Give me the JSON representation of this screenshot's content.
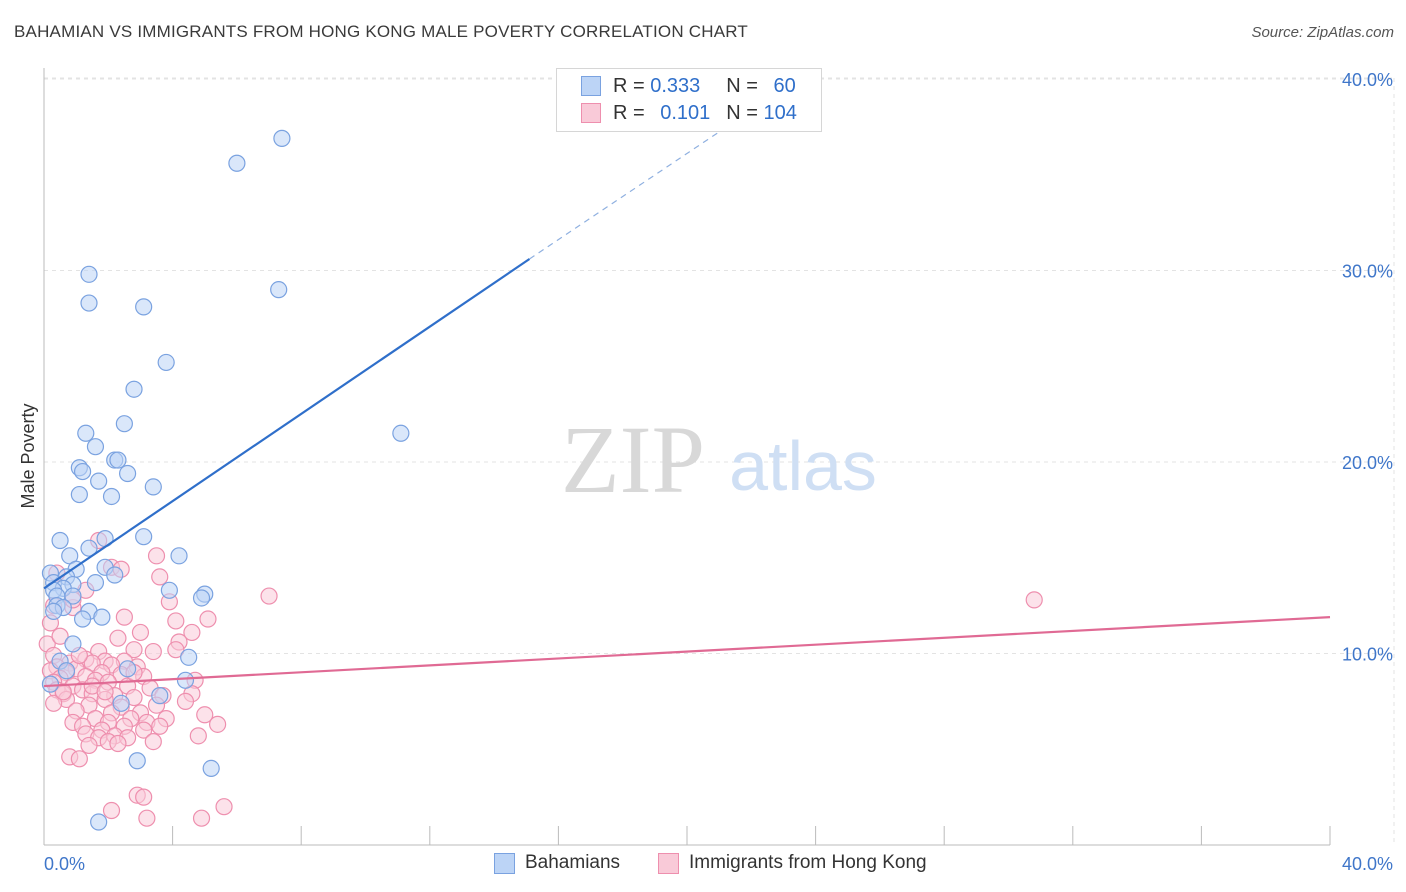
{
  "title": "BAHAMIAN VS IMMIGRANTS FROM HONG KONG MALE POVERTY CORRELATION CHART",
  "source": "Source: ZipAtlas.com",
  "watermark": {
    "zip": "ZIP",
    "atlas": "atlas"
  },
  "legend": {
    "r_label": "R =",
    "n_label": "N =",
    "series1": {
      "r": "0.333",
      "n": "60"
    },
    "series2": {
      "r": "0.101",
      "n": "104"
    }
  },
  "colors": {
    "blue_fill": "#bcd4f6",
    "blue_stroke": "#7aa2e0",
    "blue_line": "#2f6fca",
    "pink_fill": "#f9cad8",
    "pink_stroke": "#ee8fae",
    "pink_line": "#e06a94",
    "axis_text": "#3f76c9",
    "grid": "#e3e3e3"
  },
  "chart_data": {
    "type": "scatter",
    "title": "BAHAMIAN VS IMMIGRANTS FROM HONG KONG MALE POVERTY CORRELATION CHART",
    "xlabel": "",
    "ylabel": "Male Poverty",
    "xlim": [
      0,
      40
    ],
    "ylim": [
      0,
      40
    ],
    "x_ticks": [
      "0.0%",
      "40.0%"
    ],
    "y_ticks": [
      "10.0%",
      "20.0%",
      "30.0%",
      "40.0%"
    ],
    "y_tick_values": [
      10,
      20,
      30,
      40
    ],
    "series": [
      {
        "name": "Bahamians",
        "color": "blue",
        "trend": {
          "x0": 0,
          "y0": 13.4,
          "x1": 15.1,
          "y1": 30.6,
          "dashed_to_x": 21.5,
          "dashed_to_y": 37.8
        },
        "points": [
          [
            7.4,
            36.9
          ],
          [
            6.0,
            35.6
          ],
          [
            1.4,
            29.8
          ],
          [
            7.3,
            29.0
          ],
          [
            1.4,
            28.3
          ],
          [
            3.1,
            28.1
          ],
          [
            3.8,
            25.2
          ],
          [
            2.8,
            23.8
          ],
          [
            11.1,
            21.5
          ],
          [
            2.5,
            22.0
          ],
          [
            1.3,
            21.5
          ],
          [
            1.6,
            20.8
          ],
          [
            2.2,
            20.1
          ],
          [
            2.3,
            20.1
          ],
          [
            1.1,
            19.7
          ],
          [
            1.2,
            19.5
          ],
          [
            2.6,
            19.4
          ],
          [
            1.7,
            19.0
          ],
          [
            3.4,
            18.7
          ],
          [
            1.1,
            18.3
          ],
          [
            2.1,
            18.2
          ],
          [
            0.5,
            15.9
          ],
          [
            1.9,
            16.0
          ],
          [
            3.1,
            16.1
          ],
          [
            0.8,
            15.1
          ],
          [
            4.2,
            15.1
          ],
          [
            1.4,
            15.5
          ],
          [
            1.9,
            14.5
          ],
          [
            1.0,
            14.4
          ],
          [
            0.2,
            14.2
          ],
          [
            0.7,
            14.0
          ],
          [
            2.2,
            14.1
          ],
          [
            0.3,
            13.7
          ],
          [
            0.9,
            13.6
          ],
          [
            1.6,
            13.7
          ],
          [
            0.6,
            13.4
          ],
          [
            0.3,
            13.3
          ],
          [
            0.4,
            13.0
          ],
          [
            3.9,
            13.3
          ],
          [
            5.0,
            13.1
          ],
          [
            0.9,
            13.0
          ],
          [
            4.9,
            12.9
          ],
          [
            0.4,
            12.5
          ],
          [
            0.6,
            12.4
          ],
          [
            0.3,
            12.2
          ],
          [
            1.4,
            12.2
          ],
          [
            1.8,
            11.9
          ],
          [
            1.2,
            11.8
          ],
          [
            0.9,
            10.5
          ],
          [
            4.5,
            9.8
          ],
          [
            0.5,
            9.6
          ],
          [
            0.7,
            9.1
          ],
          [
            2.6,
            9.2
          ],
          [
            4.4,
            8.6
          ],
          [
            0.2,
            8.4
          ],
          [
            3.6,
            7.8
          ],
          [
            2.4,
            7.4
          ],
          [
            2.9,
            4.4
          ],
          [
            5.2,
            4.0
          ],
          [
            1.7,
            1.2
          ]
        ]
      },
      {
        "name": "Immigrants from Hong Kong",
        "color": "pink",
        "trend": {
          "x0": 0,
          "y0": 8.3,
          "x1": 40,
          "y1": 11.9
        },
        "points": [
          [
            1.7,
            15.9
          ],
          [
            3.5,
            15.1
          ],
          [
            2.1,
            14.5
          ],
          [
            0.4,
            14.2
          ],
          [
            3.6,
            14.0
          ],
          [
            1.3,
            13.3
          ],
          [
            7.0,
            13.0
          ],
          [
            30.8,
            12.8
          ],
          [
            0.3,
            12.5
          ],
          [
            0.9,
            12.4
          ],
          [
            2.5,
            11.9
          ],
          [
            4.1,
            11.7
          ],
          [
            5.1,
            11.8
          ],
          [
            0.2,
            11.6
          ],
          [
            4.6,
            11.1
          ],
          [
            3.0,
            11.1
          ],
          [
            2.3,
            10.8
          ],
          [
            0.1,
            10.5
          ],
          [
            4.2,
            10.6
          ],
          [
            4.1,
            10.2
          ],
          [
            1.7,
            10.1
          ],
          [
            2.8,
            10.2
          ],
          [
            3.4,
            10.1
          ],
          [
            0.3,
            9.9
          ],
          [
            1.3,
            9.7
          ],
          [
            1.9,
            9.6
          ],
          [
            2.5,
            9.6
          ],
          [
            0.8,
            9.5
          ],
          [
            1.5,
            9.5
          ],
          [
            2.1,
            9.4
          ],
          [
            0.4,
            9.3
          ],
          [
            1.0,
            9.2
          ],
          [
            2.9,
            9.3
          ],
          [
            0.2,
            9.1
          ],
          [
            0.7,
            9.0
          ],
          [
            1.8,
            9.0
          ],
          [
            2.4,
            8.9
          ],
          [
            1.3,
            8.8
          ],
          [
            0.5,
            8.7
          ],
          [
            3.1,
            8.8
          ],
          [
            1.6,
            8.6
          ],
          [
            0.3,
            8.5
          ],
          [
            2.0,
            8.5
          ],
          [
            4.7,
            8.6
          ],
          [
            0.9,
            8.3
          ],
          [
            2.6,
            8.3
          ],
          [
            0.4,
            8.1
          ],
          [
            1.2,
            8.1
          ],
          [
            3.3,
            8.2
          ],
          [
            0.6,
            7.9
          ],
          [
            1.5,
            7.9
          ],
          [
            4.6,
            7.9
          ],
          [
            2.2,
            7.8
          ],
          [
            3.7,
            7.8
          ],
          [
            0.7,
            7.6
          ],
          [
            1.9,
            7.6
          ],
          [
            2.8,
            7.7
          ],
          [
            4.4,
            7.5
          ],
          [
            0.3,
            7.4
          ],
          [
            1.4,
            7.3
          ],
          [
            3.5,
            7.3
          ],
          [
            2.4,
            7.2
          ],
          [
            1.0,
            7.0
          ],
          [
            2.1,
            6.9
          ],
          [
            3.0,
            6.9
          ],
          [
            5.0,
            6.8
          ],
          [
            1.6,
            6.6
          ],
          [
            2.7,
            6.6
          ],
          [
            3.8,
            6.6
          ],
          [
            0.9,
            6.4
          ],
          [
            2.0,
            6.4
          ],
          [
            3.2,
            6.4
          ],
          [
            5.4,
            6.3
          ],
          [
            1.2,
            6.2
          ],
          [
            2.5,
            6.2
          ],
          [
            1.8,
            6.0
          ],
          [
            3.1,
            6.0
          ],
          [
            1.3,
            5.8
          ],
          [
            2.2,
            5.7
          ],
          [
            4.8,
            5.7
          ],
          [
            1.7,
            5.6
          ],
          [
            2.6,
            5.6
          ],
          [
            2.0,
            5.4
          ],
          [
            3.4,
            5.4
          ],
          [
            1.4,
            5.2
          ],
          [
            2.3,
            5.3
          ],
          [
            0.8,
            4.6
          ],
          [
            1.1,
            4.5
          ],
          [
            2.9,
            2.6
          ],
          [
            3.1,
            2.5
          ],
          [
            5.6,
            2.0
          ],
          [
            2.1,
            1.8
          ],
          [
            3.2,
            1.4
          ],
          [
            4.9,
            1.4
          ],
          [
            1.5,
            8.3
          ],
          [
            1.9,
            8.0
          ],
          [
            0.5,
            10.9
          ],
          [
            3.9,
            12.7
          ],
          [
            0.9,
            12.8
          ],
          [
            2.4,
            14.4
          ],
          [
            1.1,
            9.9
          ],
          [
            2.8,
            9.0
          ],
          [
            0.6,
            8.0
          ],
          [
            3.6,
            6.2
          ]
        ]
      }
    ]
  },
  "bottom_legend": {
    "series1": "Bahamians",
    "series2": "Immigrants from Hong Kong"
  }
}
